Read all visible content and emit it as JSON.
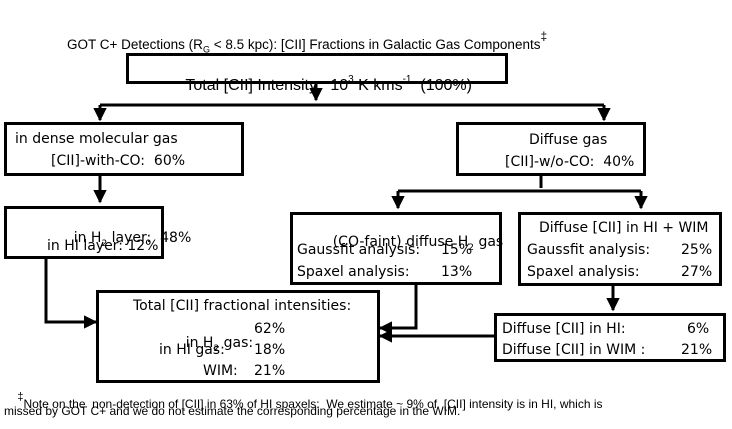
{
  "title": {
    "prefix": "GOT C+ Detections (R",
    "sub": "G",
    "suffix": " < 8.5 kpc): [CII] Fractions in Galactic Gas Components",
    "mark": "‡"
  },
  "total": {
    "prefix": "Total [CII] Intensity:  10",
    "exp": "3",
    "mid": " K kms",
    "unit_exp": "-1",
    "suffix": "  (100%)"
  },
  "dense": {
    "line1": "in dense molecular gas",
    "line2": "[CII]-with-CO:  60%"
  },
  "diffuse": {
    "line1": "Diffuse gas",
    "line2": "[CII]-w/o-CO:  40%"
  },
  "layers": {
    "h2_prefix": "in H",
    "h2_sub": "2",
    "h2_suffix": " layer:  48%",
    "hi": "in HI layer: 12%"
  },
  "cofaint": {
    "title_prefix": "(CO-faint) diffuse H",
    "title_sub": "2",
    "title_suffix": " gas",
    "gauss_label": "Gaussfit analysis:",
    "gauss_value": "15%",
    "spaxel_label": "Spaxel analysis:",
    "spaxel_value": "13%"
  },
  "hiwim": {
    "title": "Diffuse [CII] in HI + WIM",
    "gauss_label": "Gaussfit analysis:",
    "gauss_value": "25%",
    "spaxel_label": "Spaxel analysis:",
    "spaxel_value": "27%"
  },
  "fractional": {
    "title": "Total [CII] fractional intensities:",
    "h2_prefix": "in H",
    "h2_sub": "2",
    "h2_suffix": " gas:",
    "h2_value": "62%",
    "hi_label": "in HI gas:",
    "hi_value": "18%",
    "wim_label": "WIM:",
    "wim_value": "21%"
  },
  "diffuse_split": {
    "hi_label": "Diffuse [CII] in HI:",
    "hi_value": "6%",
    "wim_label": "Diffuse [CII] in WIM :",
    "wim_value": "21%"
  },
  "footnote": {
    "mark": "‡",
    "line1": "Note on the  non-detection of [CII] in 63% of HI spaxels:  We estimate ~ 9% of  [CII] intensity is in HI, which is",
    "line2": "missed by GOT C+ and we do not estimate the corresponding percentage in the WIM."
  }
}
